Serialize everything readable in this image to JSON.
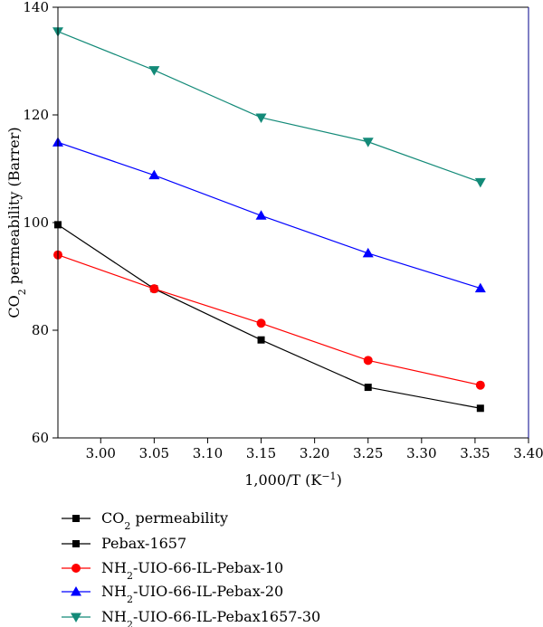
{
  "chart_data": {
    "type": "line",
    "xlabel": "1,000/T (K",
    "xlabel_sup": "−1",
    "xlabel_end": ")",
    "ylabel": "CO",
    "ylabel_sub": "2",
    "ylabel_rest": " permeability (Barrer)",
    "xlim": [
      2.96,
      3.4
    ],
    "ylim": [
      60,
      140
    ],
    "xticks": [
      "3.00",
      "3.05",
      "3.10",
      "3.15",
      "3.20",
      "3.25",
      "3.30",
      "3.35",
      "3.40"
    ],
    "yticks": [
      "60",
      "80",
      "100",
      "120",
      "140"
    ],
    "legend": "below",
    "legend_header": {
      "text": "CO",
      "sub": "2",
      "rest": " permeability"
    },
    "series": [
      {
        "name": "Pebax-1657",
        "color": "#000000",
        "marker": "square",
        "x": [
          2.96,
          3.05,
          3.15,
          3.25,
          3.355
        ],
        "y": [
          99.6,
          87.7,
          78.2,
          69.4,
          65.5
        ]
      },
      {
        "name_pre": "NH",
        "name_sub": "2",
        "name_rest": "-UIO-66-IL-Pebax-10",
        "color": "#ff0000",
        "marker": "circle",
        "x": [
          2.96,
          3.05,
          3.15,
          3.25,
          3.355
        ],
        "y": [
          94.0,
          87.7,
          81.3,
          74.4,
          69.8
        ]
      },
      {
        "name_pre": "NH",
        "name_sub": "2",
        "name_rest": "-UIO-66-IL-Pebax-20",
        "color": "#0000ff",
        "marker": "triangle-up",
        "x": [
          2.96,
          3.05,
          3.15,
          3.25,
          3.355
        ],
        "y": [
          114.9,
          108.8,
          101.3,
          94.3,
          87.8
        ]
      },
      {
        "name_pre": "NH",
        "name_sub": "2",
        "name_rest": "-UIO-66-IL-Pebax1657-30",
        "color": "#138a78",
        "marker": "triangle-down",
        "x": [
          2.96,
          3.05,
          3.15,
          3.25,
          3.355
        ],
        "y": [
          135.5,
          128.3,
          119.5,
          115.0,
          107.5
        ]
      }
    ]
  }
}
